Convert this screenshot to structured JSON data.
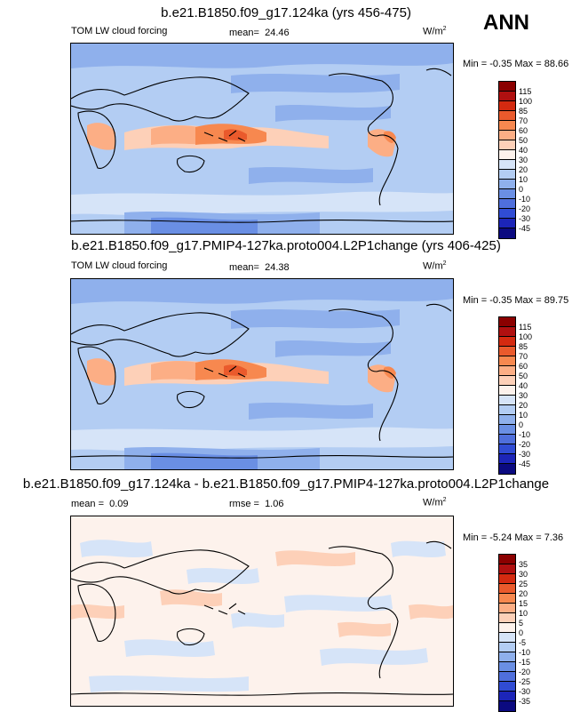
{
  "season": "ANN",
  "units_base": "W/m",
  "units_exp": "2",
  "panels": [
    {
      "title": "b.e21.B1850.f09_g17.124ka (yrs 456-475)",
      "variable": "TOM LW cloud forcing",
      "stat_label": "mean=",
      "stat_value": "24.46",
      "minmax": "Min = -0.35 Max = 88.66",
      "levels": [
        "115",
        "100",
        "85",
        "70",
        "60",
        "50",
        "40",
        "30",
        "20",
        "10",
        "0",
        "-10",
        "-20",
        "-30",
        "-45"
      ],
      "colors": [
        "#8b0000",
        "#b01010",
        "#d42a10",
        "#ea5a2c",
        "#f7884f",
        "#fcae85",
        "#fdd0b8",
        "#fdf2ec",
        "#d6e4f8",
        "#b3cdf3",
        "#8fb0ec",
        "#6a8fe4",
        "#4f6fdc",
        "#304cd4",
        "#1c25b8",
        "#0b0a80"
      ]
    },
    {
      "title": "b.e21.B1850.f09_g17.PMIP4-127ka.proto004.L2P1change (yrs 406-425)",
      "variable": "TOM LW cloud forcing",
      "stat_label": "mean=",
      "stat_value": "24.38",
      "minmax": "Min = -0.35 Max = 89.75",
      "levels": [
        "115",
        "100",
        "85",
        "70",
        "60",
        "50",
        "40",
        "30",
        "20",
        "10",
        "0",
        "-10",
        "-20",
        "-30",
        "-45"
      ],
      "colors": [
        "#8b0000",
        "#b01010",
        "#d42a10",
        "#ea5a2c",
        "#f7884f",
        "#fcae85",
        "#fdd0b8",
        "#fdf2ec",
        "#d6e4f8",
        "#b3cdf3",
        "#8fb0ec",
        "#6a8fe4",
        "#4f6fdc",
        "#304cd4",
        "#1c25b8",
        "#0b0a80"
      ]
    },
    {
      "title": "b.e21.B1850.f09_g17.124ka - b.e21.B1850.f09_g17.PMIP4-127ka.proto004.L2P1change",
      "stat_label": "mean =",
      "stat_value": "0.09",
      "rmse_label": "rmse =",
      "rmse_value": "1.06",
      "minmax": "Min = -5.24 Max = 7.36",
      "levels": [
        "35",
        "30",
        "25",
        "20",
        "15",
        "10",
        "5",
        "0",
        "-5",
        "-10",
        "-15",
        "-20",
        "-25",
        "-30",
        "-35"
      ],
      "colors": [
        "#8b0000",
        "#b01010",
        "#d42a10",
        "#ea5a2c",
        "#f7884f",
        "#fcae85",
        "#fdd0b8",
        "#fdf2ec",
        "#d6e4f8",
        "#b3cdf3",
        "#8fb0ec",
        "#6a8fe4",
        "#4f6fdc",
        "#304cd4",
        "#1c25b8",
        "#0b0a80"
      ]
    }
  ]
}
